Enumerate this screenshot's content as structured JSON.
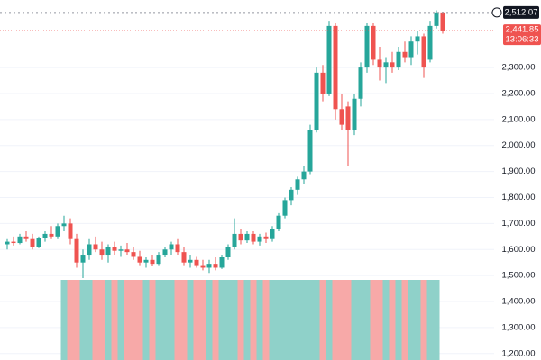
{
  "chart_data": {
    "type": "candlestick",
    "open": [
      1620,
      1630,
      1625,
      1650,
      1640,
      1610,
      1645,
      1660,
      1650,
      1690,
      1700,
      1640,
      1550,
      1580,
      1620,
      1600,
      1580,
      1610,
      1595,
      1600,
      1590,
      1575,
      1550,
      1560,
      1545,
      1580,
      1600,
      1620,
      1590,
      1550,
      1560,
      1540,
      1530,
      1545,
      1530,
      1570,
      1610,
      1660,
      1635,
      1660,
      1630,
      1650,
      1640,
      1680,
      1730,
      1790,
      1830,
      1870,
      1900,
      2060,
      2280,
      2200,
      2460,
      2140,
      2150,
      2060,
      2180,
      2300,
      2460,
      2330,
      2300,
      2320,
      2300,
      2360,
      2340,
      2400,
      2420,
      2330,
      2460,
      2512
    ],
    "high": [
      1640,
      1650,
      1660,
      1670,
      1660,
      1650,
      1670,
      1690,
      1700,
      1730,
      1720,
      1660,
      1600,
      1640,
      1650,
      1630,
      1620,
      1630,
      1615,
      1625,
      1610,
      1595,
      1570,
      1580,
      1590,
      1610,
      1630,
      1640,
      1610,
      1580,
      1575,
      1560,
      1560,
      1570,
      1580,
      1620,
      1720,
      1680,
      1670,
      1670,
      1660,
      1665,
      1690,
      1740,
      1800,
      1840,
      1880,
      1920,
      2080,
      2300,
      2310,
      2480,
      2470,
      2200,
      2170,
      2200,
      2320,
      2470,
      2470,
      2380,
      2340,
      2360,
      2380,
      2400,
      2420,
      2440,
      2430,
      2480,
      2520,
      2515
    ],
    "low": [
      1600,
      1615,
      1620,
      1630,
      1600,
      1605,
      1630,
      1640,
      1640,
      1670,
      1620,
      1530,
      1490,
      1560,
      1590,
      1560,
      1550,
      1580,
      1575,
      1580,
      1560,
      1540,
      1530,
      1535,
      1540,
      1570,
      1580,
      1580,
      1540,
      1530,
      1530,
      1520,
      1510,
      1520,
      1525,
      1560,
      1600,
      1620,
      1625,
      1620,
      1615,
      1625,
      1630,
      1670,
      1720,
      1770,
      1810,
      1850,
      1890,
      2050,
      2170,
      2190,
      2100,
      2060,
      1920,
      2040,
      2150,
      2280,
      2310,
      2250,
      2240,
      2280,
      2290,
      2320,
      2310,
      2350,
      2260,
      2320,
      2450,
      2430
    ],
    "close": [
      1630,
      1625,
      1650,
      1640,
      1610,
      1645,
      1660,
      1650,
      1690,
      1700,
      1640,
      1550,
      1580,
      1620,
      1600,
      1580,
      1610,
      1595,
      1600,
      1590,
      1575,
      1550,
      1560,
      1545,
      1580,
      1600,
      1620,
      1590,
      1550,
      1560,
      1540,
      1530,
      1545,
      1530,
      1570,
      1610,
      1660,
      1635,
      1660,
      1630,
      1650,
      1640,
      1680,
      1730,
      1790,
      1830,
      1870,
      1900,
      2060,
      2280,
      2200,
      2460,
      2140,
      2080,
      2060,
      2180,
      2300,
      2460,
      2330,
      2300,
      2320,
      2300,
      2360,
      2340,
      2400,
      2420,
      2300,
      2460,
      2512,
      2441.85
    ],
    "volume": [
      null,
      null,
      null,
      null,
      null,
      null,
      null,
      null,
      null,
      100,
      100,
      100,
      100,
      100,
      100,
      100,
      100,
      100,
      100,
      100,
      100,
      100,
      100,
      100,
      100,
      100,
      100,
      100,
      100,
      100,
      100,
      100,
      100,
      100,
      100,
      100,
      100,
      100,
      100,
      100,
      100,
      100,
      100,
      100,
      100,
      100,
      100,
      100,
      100,
      100,
      100,
      100,
      100,
      100,
      100,
      100,
      100,
      100,
      100,
      100,
      100,
      100,
      100,
      100,
      100,
      100,
      100,
      100,
      100,
      null
    ],
    "volume_lim": [
      0,
      100
    ],
    "up_color": "#26a69a",
    "down_color": "#ef5350",
    "volume_up_color": "#8fd1c9",
    "volume_down_color": "#f7a9a8",
    "ylim": [
      1175,
      2560
    ],
    "yticks": [
      {
        "value": 1200,
        "label": "1,200.00"
      },
      {
        "value": 1300,
        "label": "1,300.00"
      },
      {
        "value": 1400,
        "label": "1,400.00"
      },
      {
        "value": 1500,
        "label": "1,500.00"
      },
      {
        "value": 1600,
        "label": "1,600.00"
      },
      {
        "value": 1700,
        "label": "1,700.00"
      },
      {
        "value": 1800,
        "label": "1,800.00"
      },
      {
        "value": 1900,
        "label": "1,900.00"
      },
      {
        "value": 2000,
        "label": "2,000.00"
      },
      {
        "value": 2100,
        "label": "2,100.00"
      },
      {
        "value": 2200,
        "label": "2,200.00"
      },
      {
        "value": 2300,
        "label": "2,300.00"
      }
    ],
    "grid": true,
    "high_marker": {
      "value": 2512.07,
      "label": "2,512.07"
    },
    "last_price": {
      "value": 2441.85,
      "label": "2,441.85"
    },
    "countdown": "13:06:33"
  }
}
